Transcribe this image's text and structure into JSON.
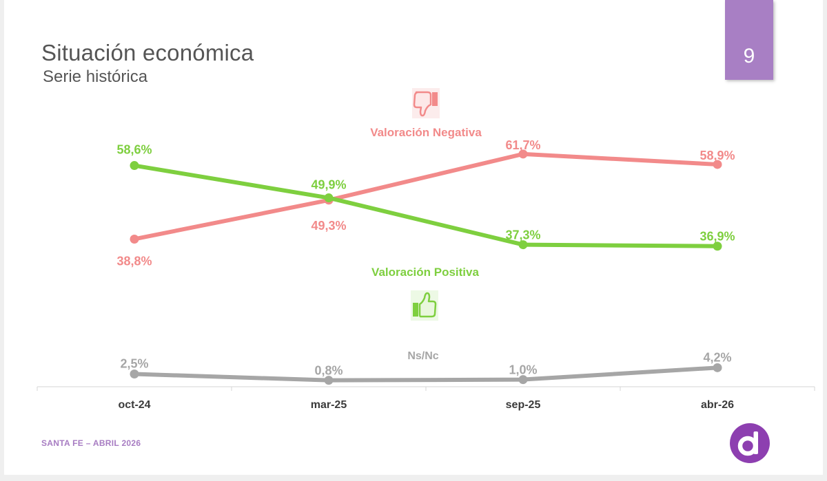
{
  "header": {
    "title": "Situación económica",
    "subtitle": "Serie histórica",
    "page_number": "9"
  },
  "footer": {
    "text": "SANTA FE – ABRIL 2026"
  },
  "icons": {
    "negative": "thumbs-down-icon",
    "positive": "thumbs-up-icon",
    "logo": "brand-logo-d"
  },
  "colors": {
    "negative": "#f28a8a",
    "positive": "#7ecf3f",
    "nsnc": "#a6a6a6",
    "accent": "#a87fc4",
    "axis": "#d4d4d4",
    "tick_label": "#3a3a3a"
  },
  "chart_data": {
    "type": "line",
    "categories": [
      "oct-24",
      "mar-25",
      "sep-25",
      "abr-26"
    ],
    "value_suffix": "%",
    "ylim": [
      0,
      70
    ],
    "grid": false,
    "series": [
      {
        "key": "negative",
        "name": "Valoración Negativa",
        "values": [
          38.8,
          49.3,
          61.7,
          58.9
        ],
        "labels": [
          "38,8%",
          "49,3%",
          "61,7%",
          "58,9%"
        ]
      },
      {
        "key": "positive",
        "name": "Valoración Positiva",
        "values": [
          58.6,
          49.9,
          37.3,
          36.9
        ],
        "labels": [
          "58,6%",
          "49,9%",
          "37,3%",
          "36,9%"
        ]
      },
      {
        "key": "nsnc",
        "name": "Ns/Nc",
        "values": [
          2.5,
          0.8,
          1.0,
          4.2
        ],
        "labels": [
          "2,5%",
          "0,8%",
          "1,0%",
          "4,2%"
        ]
      }
    ]
  }
}
